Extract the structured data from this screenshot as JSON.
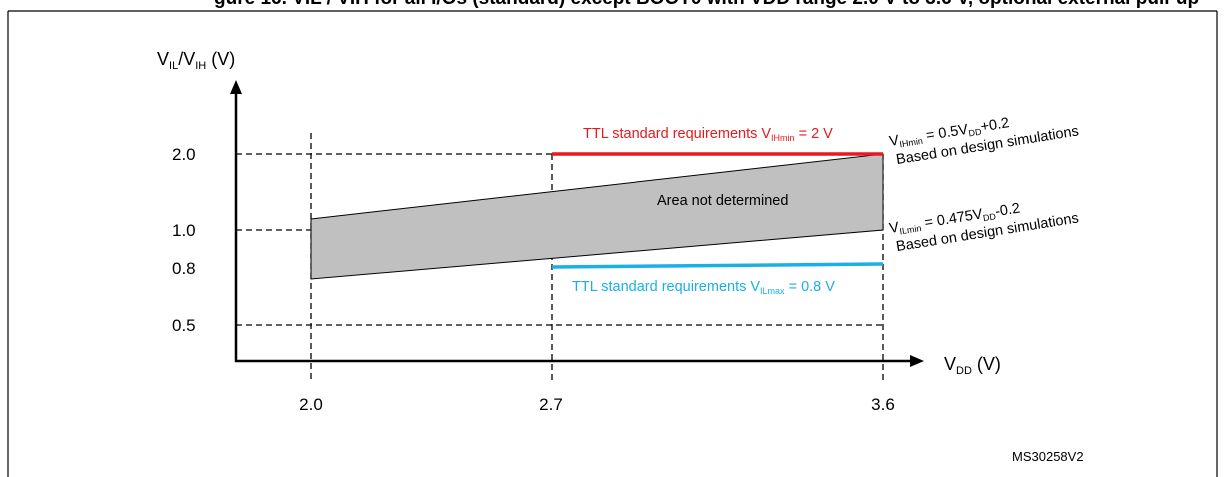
{
  "header": {
    "title_fragment": "gure 16. VIL / VIH for all I/Os (standard) except BOOT0 with VDD range 2.0 V to 3.6 V, optional external pull-up"
  },
  "diagram": {
    "y_axis_label": {
      "v": "V",
      "sub1": "IL",
      "slash": "/V",
      "sub2": "IH",
      "unit": " (V)"
    },
    "x_axis_label": {
      "v": "V",
      "sub": "DD",
      "unit": " (V)"
    },
    "y_ticks": [
      "2.0",
      "1.0",
      "0.8",
      "0.5"
    ],
    "x_ticks": [
      "2.0",
      "2.7",
      "3.6"
    ],
    "ttl_high": {
      "prefix": "TTL standard  requirements V",
      "sub": "IHmin",
      "suffix": " = 2 V"
    },
    "ttl_low": {
      "prefix": "TTL standard  requirements V",
      "sub": "ILmax",
      "suffix": " = 0.8 V"
    },
    "area_label": "Area not determined",
    "vih_formula": {
      "v": "V",
      "sub": "IHmin",
      "mid": " = 0.5V",
      "sub2": "DD",
      "end": "+0.2"
    },
    "vih_note": "Based on design simulations",
    "vil_formula": {
      "v": "V",
      "sub": "ILmin",
      "mid": " = 0.475V",
      "sub2": "DD",
      "end": "-0.2"
    },
    "vil_note": "Based on design simulations",
    "ref_code": "MS30258V2",
    "colors": {
      "ttl_high": "#e8191d",
      "ttl_low": "#1ab0e6",
      "area_fill": "#c0c0c0"
    }
  }
}
